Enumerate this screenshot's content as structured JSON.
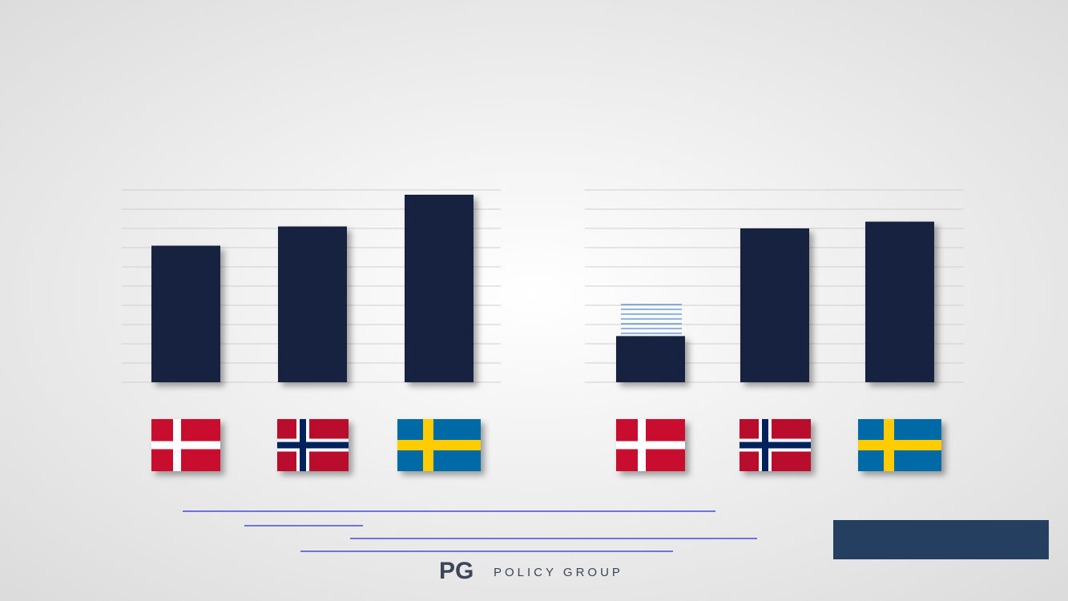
{
  "chart_data": [
    {
      "type": "bar",
      "categories": [
        null,
        null,
        null
      ],
      "values": [
        7.1,
        8.1,
        9.75
      ],
      "color": "#12233f",
      "ylim": [
        0,
        10
      ],
      "yticks": [
        0,
        1,
        2,
        3,
        4,
        5,
        6,
        7,
        8,
        9,
        10
      ],
      "grid": true
    },
    {
      "type": "bar",
      "categories": [
        null,
        null,
        null
      ],
      "values": [
        2.4,
        8.0,
        8.35
      ],
      "color": "#12233f",
      "ylim": [
        0,
        10
      ],
      "yticks": [
        0,
        1,
        2,
        3,
        4,
        5,
        6,
        7,
        8,
        9,
        10
      ],
      "grid": true
    }
  ],
  "logo": {
    "mark": "PG",
    "text": "POLICY GROUP"
  }
}
